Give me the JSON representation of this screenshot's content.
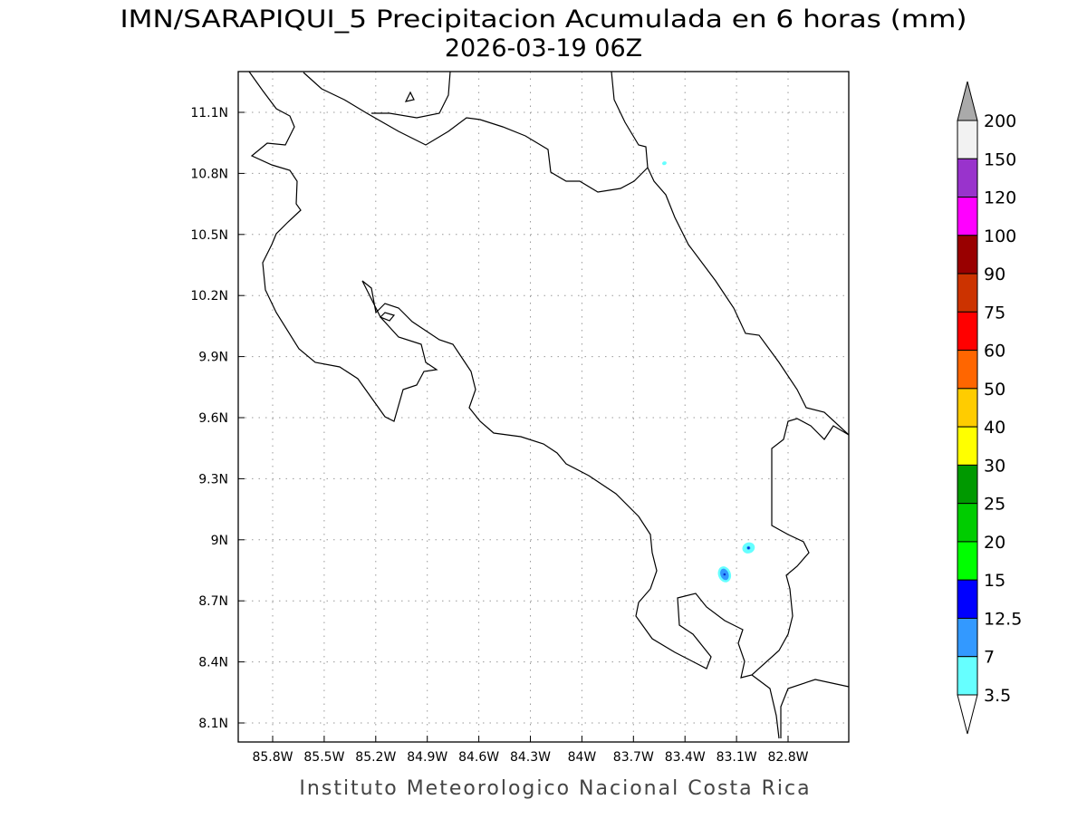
{
  "title": {
    "line1": "IMN/SARAPIQUI_5 Precipitacion Acumulada en 6 horas (mm)",
    "line2": "2026-03-19 06Z"
  },
  "footer": "Instituto Meteorologico Nacional Costa Rica",
  "map": {
    "lon_ticks": [
      "85.8W",
      "85.5W",
      "85.2W",
      "84.9W",
      "84.6W",
      "84.3W",
      "84W",
      "83.7W",
      "83.4W",
      "83.1W",
      "82.8W"
    ],
    "lat_ticks": [
      "11.1N",
      "10.8N",
      "10.5N",
      "10.2N",
      "9.9N",
      "9.6N",
      "9.3N",
      "9N",
      "8.7N",
      "8.4N",
      "8.1N"
    ],
    "grid": "dotted",
    "precip_cells": [
      {
        "lon": 83.17,
        "lat": 8.83,
        "max_class": "7-12.5"
      },
      {
        "lon": 83.03,
        "lat": 8.96,
        "max_class": "7-12.5"
      },
      {
        "lon": 83.52,
        "lat": 10.85,
        "max_class": "3.5-7"
      }
    ]
  },
  "colorbar": {
    "labels": [
      "200",
      "150",
      "120",
      "100",
      "90",
      "75",
      "60",
      "50",
      "40",
      "30",
      "25",
      "20",
      "15",
      "12.5",
      "7",
      "3.5"
    ],
    "colors": [
      "#f2f2f2",
      "#9933cc",
      "#ff00ff",
      "#990000",
      "#cc3300",
      "#ff0000",
      "#ff6600",
      "#ffcc00",
      "#ffff00",
      "#009900",
      "#00cc00",
      "#00ff00",
      "#0000ff",
      "#3399ff",
      "#66ffff"
    ],
    "over_color": "#aaaaaa",
    "under_color": "#ffffff"
  }
}
